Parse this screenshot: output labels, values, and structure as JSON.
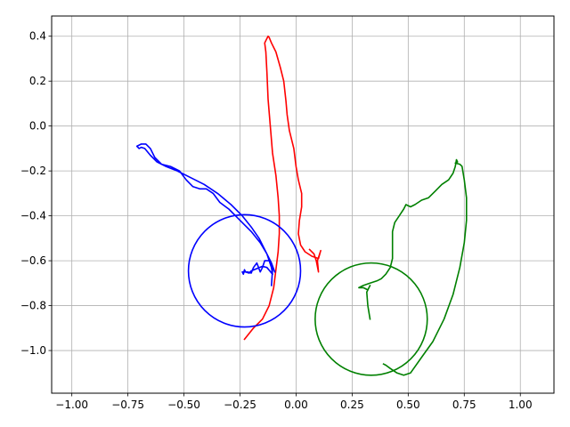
{
  "chart_data": {
    "type": "line",
    "title": "",
    "xlabel": "",
    "ylabel": "",
    "xlim": [
      -1.09,
      1.15
    ],
    "ylim": [
      -1.19,
      0.49
    ],
    "grid": true,
    "x_ticks": [
      -1.0,
      -0.75,
      -0.5,
      -0.25,
      0.0,
      0.25,
      0.5,
      0.75,
      1.0
    ],
    "x_tick_labels": [
      "−1.00",
      "−0.75",
      "−0.50",
      "−0.25",
      "0.00",
      "0.25",
      "0.50",
      "0.75",
      "1.00"
    ],
    "y_ticks": [
      0.4,
      0.2,
      0.0,
      -0.2,
      -0.4,
      -0.6,
      -0.8,
      -1.0
    ],
    "y_tick_labels": [
      "0.4",
      "0.2",
      "0.0",
      "−0.2",
      "−0.4",
      "−0.6",
      "−0.8",
      "−1.0"
    ],
    "series": [
      {
        "kind": "path",
        "color": "#ff0000",
        "points": [
          [
            -0.23,
            -0.95
          ],
          [
            -0.19,
            -0.9
          ],
          [
            -0.15,
            -0.86
          ],
          [
            -0.12,
            -0.8
          ],
          [
            -0.1,
            -0.72
          ],
          [
            -0.09,
            -0.64
          ],
          [
            -0.08,
            -0.56
          ],
          [
            -0.075,
            -0.48
          ],
          [
            -0.075,
            -0.4
          ],
          [
            -0.08,
            -0.32
          ],
          [
            -0.09,
            -0.22
          ],
          [
            -0.105,
            -0.12
          ],
          [
            -0.115,
            0.0
          ],
          [
            -0.125,
            0.12
          ],
          [
            -0.13,
            0.24
          ],
          [
            -0.135,
            0.33
          ],
          [
            -0.14,
            0.37
          ],
          [
            -0.13,
            0.39
          ],
          [
            -0.125,
            0.4
          ],
          [
            -0.12,
            0.395
          ],
          [
            -0.11,
            0.37
          ],
          [
            -0.09,
            0.33
          ],
          [
            -0.07,
            0.26
          ],
          [
            -0.055,
            0.2
          ],
          [
            -0.045,
            0.11
          ],
          [
            -0.04,
            0.05
          ],
          [
            -0.03,
            -0.02
          ],
          [
            -0.01,
            -0.1
          ],
          [
            0.0,
            -0.18
          ],
          [
            0.01,
            -0.24
          ],
          [
            0.025,
            -0.3
          ],
          [
            0.025,
            -0.36
          ],
          [
            0.015,
            -0.42
          ],
          [
            0.01,
            -0.48
          ],
          [
            0.02,
            -0.53
          ],
          [
            0.04,
            -0.56
          ],
          [
            0.07,
            -0.58
          ],
          [
            0.1,
            -0.59
          ],
          [
            0.11,
            -0.555
          ],
          [
            0.095,
            -0.6
          ],
          [
            0.1,
            -0.65
          ],
          [
            0.09,
            -0.6
          ],
          [
            0.08,
            -0.57
          ],
          [
            0.06,
            -0.55
          ]
        ]
      },
      {
        "kind": "path",
        "color": "#0000ff",
        "points": [
          [
            -0.11,
            -0.71
          ],
          [
            -0.105,
            -0.64
          ],
          [
            -0.12,
            -0.6
          ],
          [
            -0.14,
            -0.6
          ],
          [
            -0.15,
            -0.63
          ],
          [
            -0.16,
            -0.65
          ],
          [
            -0.175,
            -0.61
          ],
          [
            -0.19,
            -0.63
          ],
          [
            -0.2,
            -0.655
          ],
          [
            -0.215,
            -0.65
          ],
          [
            -0.225,
            -0.65
          ],
          [
            -0.23,
            -0.64
          ],
          [
            -0.235,
            -0.66
          ],
          [
            -0.24,
            -0.65
          ],
          [
            -0.225,
            -0.65
          ],
          [
            -0.21,
            -0.655
          ],
          [
            -0.2,
            -0.645
          ],
          [
            -0.15,
            -0.625
          ],
          [
            -0.13,
            -0.63
          ],
          [
            -0.105,
            -0.66
          ],
          [
            -0.11,
            -0.63
          ],
          [
            -0.13,
            -0.57
          ],
          [
            -0.16,
            -0.52
          ],
          [
            -0.2,
            -0.47
          ],
          [
            -0.25,
            -0.42
          ],
          [
            -0.3,
            -0.37
          ],
          [
            -0.34,
            -0.34
          ],
          [
            -0.37,
            -0.3
          ],
          [
            -0.4,
            -0.28
          ],
          [
            -0.43,
            -0.28
          ],
          [
            -0.46,
            -0.27
          ],
          [
            -0.49,
            -0.24
          ],
          [
            -0.52,
            -0.2
          ],
          [
            -0.56,
            -0.18
          ],
          [
            -0.6,
            -0.17
          ],
          [
            -0.63,
            -0.14
          ],
          [
            -0.65,
            -0.1
          ],
          [
            -0.67,
            -0.08
          ],
          [
            -0.69,
            -0.08
          ],
          [
            -0.71,
            -0.09
          ],
          [
            -0.7,
            -0.1
          ],
          [
            -0.69,
            -0.095
          ],
          [
            -0.675,
            -0.1
          ],
          [
            -0.65,
            -0.13
          ],
          [
            -0.62,
            -0.16
          ],
          [
            -0.58,
            -0.18
          ],
          [
            -0.53,
            -0.2
          ],
          [
            -0.47,
            -0.23
          ],
          [
            -0.41,
            -0.26
          ],
          [
            -0.35,
            -0.3
          ],
          [
            -0.29,
            -0.35
          ],
          [
            -0.24,
            -0.4
          ],
          [
            -0.2,
            -0.45
          ],
          [
            -0.165,
            -0.5
          ],
          [
            -0.14,
            -0.55
          ],
          [
            -0.11,
            -0.61
          ],
          [
            -0.095,
            -0.65
          ]
        ]
      },
      {
        "kind": "path",
        "color": "#008000",
        "points": [
          [
            0.33,
            -0.86
          ],
          [
            0.32,
            -0.8
          ],
          [
            0.315,
            -0.74
          ],
          [
            0.33,
            -0.71
          ],
          [
            0.32,
            -0.73
          ],
          [
            0.3,
            -0.72
          ],
          [
            0.28,
            -0.72
          ],
          [
            0.3,
            -0.71
          ],
          [
            0.33,
            -0.7
          ],
          [
            0.36,
            -0.69
          ],
          [
            0.38,
            -0.68
          ],
          [
            0.4,
            -0.66
          ],
          [
            0.42,
            -0.63
          ],
          [
            0.43,
            -0.59
          ],
          [
            0.43,
            -0.53
          ],
          [
            0.43,
            -0.47
          ],
          [
            0.44,
            -0.43
          ],
          [
            0.46,
            -0.4
          ],
          [
            0.48,
            -0.37
          ],
          [
            0.49,
            -0.35
          ],
          [
            0.51,
            -0.36
          ],
          [
            0.53,
            -0.35
          ],
          [
            0.56,
            -0.33
          ],
          [
            0.59,
            -0.32
          ],
          [
            0.62,
            -0.29
          ],
          [
            0.65,
            -0.26
          ],
          [
            0.68,
            -0.24
          ],
          [
            0.7,
            -0.21
          ],
          [
            0.71,
            -0.18
          ],
          [
            0.715,
            -0.15
          ],
          [
            0.72,
            -0.16
          ],
          [
            0.71,
            -0.165
          ],
          [
            0.73,
            -0.17
          ],
          [
            0.74,
            -0.18
          ],
          [
            0.75,
            -0.24
          ],
          [
            0.76,
            -0.32
          ],
          [
            0.76,
            -0.42
          ],
          [
            0.75,
            -0.52
          ],
          [
            0.73,
            -0.63
          ],
          [
            0.7,
            -0.75
          ],
          [
            0.66,
            -0.86
          ],
          [
            0.61,
            -0.96
          ],
          [
            0.56,
            -1.03
          ],
          [
            0.51,
            -1.1
          ],
          [
            0.48,
            -1.11
          ],
          [
            0.45,
            -1.1
          ],
          [
            0.42,
            -1.08
          ],
          [
            0.4,
            -1.065
          ],
          [
            0.39,
            -1.06
          ]
        ]
      },
      {
        "kind": "circle",
        "color": "#0000ff",
        "center": [
          -0.23,
          -0.645
        ],
        "radius": 0.25
      },
      {
        "kind": "circle",
        "color": "#008000",
        "center": [
          0.335,
          -0.86
        ],
        "radius": 0.25
      }
    ]
  }
}
